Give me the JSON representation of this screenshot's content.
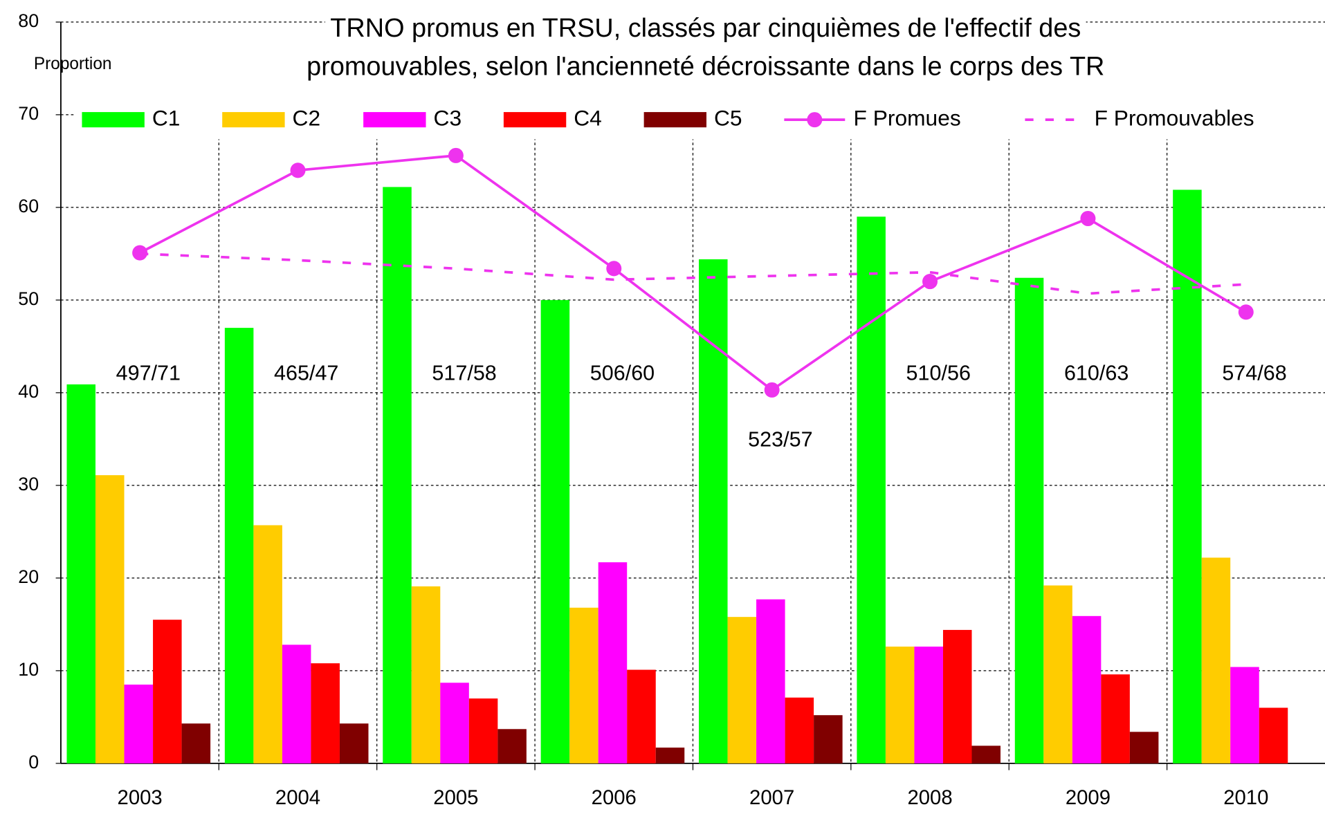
{
  "chart_data": {
    "type": "bar",
    "title": [
      "TRNO promus en TRSU, classés par cinquièmes de l'effectif des",
      "promouvables, selon l'ancienneté décroissante  dans le corps des TR"
    ],
    "y_label": "Proportion",
    "categories": [
      "2003",
      "2004",
      "2005",
      "2006",
      "2007",
      "2008",
      "2009",
      "2010"
    ],
    "series": [
      {
        "name": "C1",
        "color": "#00ff00",
        "values": [
          40.9,
          47.0,
          62.2,
          50.0,
          54.4,
          59.0,
          52.4,
          61.9
        ]
      },
      {
        "name": "C2",
        "color": "#ffcc00",
        "values": [
          31.1,
          25.7,
          19.1,
          16.8,
          15.8,
          12.6,
          19.2,
          22.2
        ]
      },
      {
        "name": "C3",
        "color": "#ff00ff",
        "values": [
          8.5,
          12.8,
          8.7,
          21.7,
          17.7,
          12.6,
          15.9,
          10.4
        ]
      },
      {
        "name": "C4",
        "color": "#ff0000",
        "values": [
          15.5,
          10.8,
          7.0,
          10.1,
          7.1,
          14.4,
          9.6,
          6.0
        ]
      },
      {
        "name": "C5",
        "color": "#800000",
        "values": [
          4.3,
          4.3,
          3.7,
          1.7,
          5.2,
          1.9,
          3.4,
          null
        ]
      },
      {
        "name": "F Promues",
        "type": "line",
        "marker": true,
        "color": "#ee33ee",
        "values": [
          55.1,
          64.0,
          65.6,
          53.4,
          40.3,
          52.0,
          58.8,
          48.7
        ]
      },
      {
        "name": "F Promouvables",
        "type": "line",
        "dashed": true,
        "color": "#ee33ee",
        "values": [
          55.0,
          54.3,
          53.4,
          52.2,
          52.6,
          53.0,
          50.7,
          51.7
        ]
      }
    ],
    "annotations": [
      "497/71",
      "465/47",
      "517/58",
      "506/60",
      "523/57",
      "510/56",
      "610/63",
      "574/68"
    ],
    "ylim": [
      0,
      80
    ],
    "yticks": [
      0,
      10,
      20,
      30,
      40,
      50,
      60,
      70,
      80
    ],
    "grid": true
  }
}
